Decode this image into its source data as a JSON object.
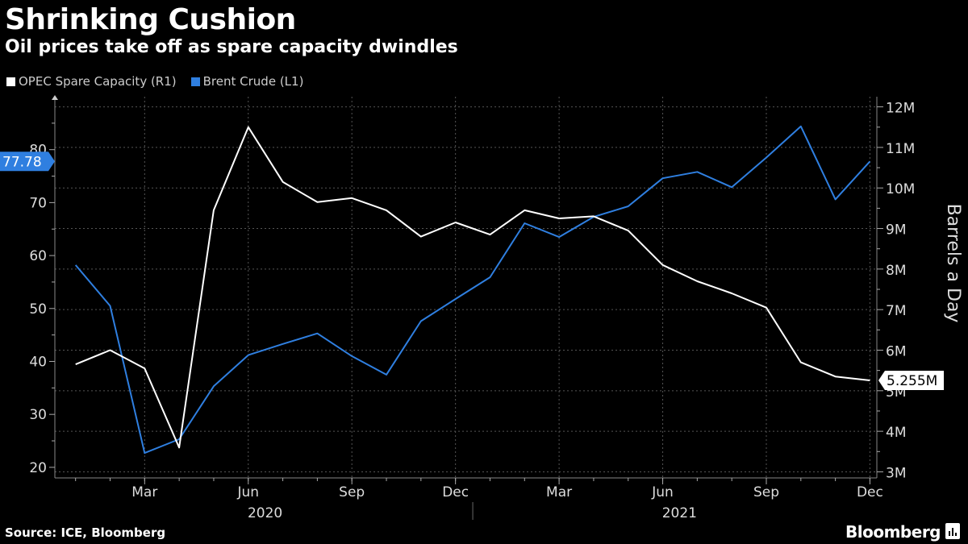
{
  "title": "Shrinking Cushion",
  "subtitle": "Oil prices take off as spare capacity dwindles",
  "legend": [
    {
      "label": "OPEC Spare Capacity (R1)",
      "color": "#ffffff"
    },
    {
      "label": "Brent Crude (L1)",
      "color": "#2f7fe0"
    }
  ],
  "source": "Source: ICE, Bloomberg",
  "brand": "Bloomberg",
  "chart_data": {
    "type": "line",
    "x": [
      "2020-01",
      "2020-02",
      "2020-03",
      "2020-04",
      "2020-05",
      "2020-06",
      "2020-07",
      "2020-08",
      "2020-09",
      "2020-10",
      "2020-11",
      "2020-12",
      "2021-01",
      "2021-02",
      "2021-03",
      "2021-04",
      "2021-05",
      "2021-06",
      "2021-07",
      "2021-08",
      "2021-09",
      "2021-10",
      "2021-11",
      "2021-12"
    ],
    "x_ticks": [
      {
        "date": "2020-03",
        "label": "Mar"
      },
      {
        "date": "2020-06",
        "label": "Jun"
      },
      {
        "date": "2020-09",
        "label": "Sep"
      },
      {
        "date": "2020-12",
        "label": "Dec"
      },
      {
        "date": "2021-03",
        "label": "Mar"
      },
      {
        "date": "2021-06",
        "label": "Jun"
      },
      {
        "date": "2021-09",
        "label": "Sep"
      },
      {
        "date": "2021-12",
        "label": "Dec"
      }
    ],
    "year_labels": [
      {
        "label": "2020",
        "date": "2020-07"
      },
      {
        "label": "2021",
        "date": "2021-07"
      }
    ],
    "series": [
      {
        "name": "Brent Crude (L1)",
        "axis": "left",
        "color": "#2f7fe0",
        "values": [
          58.2,
          50.5,
          22.7,
          25.3,
          35.3,
          41.2,
          43.3,
          45.3,
          41.0,
          37.5,
          47.6,
          51.8,
          55.9,
          66.1,
          63.5,
          67.3,
          69.3,
          74.6,
          75.8,
          72.9,
          78.5,
          84.4,
          70.6,
          77.78
        ]
      },
      {
        "name": "OPEC Spare Capacity (R1)",
        "axis": "right",
        "color": "#ffffff",
        "values": [
          5.65,
          6.0,
          5.55,
          3.6,
          9.45,
          11.5,
          10.15,
          9.65,
          9.75,
          9.45,
          8.8,
          9.15,
          8.85,
          9.45,
          9.25,
          9.3,
          8.95,
          8.1,
          7.7,
          7.4,
          7.05,
          5.7,
          5.35,
          5.255
        ]
      }
    ],
    "left_axis": {
      "ylim": [
        18,
        90
      ],
      "ticks": [
        20,
        30,
        40,
        50,
        60,
        70,
        80
      ]
    },
    "right_axis": {
      "ylim": [
        2.85,
        12.25
      ],
      "ticks": [
        3,
        4,
        5,
        6,
        7,
        8,
        9,
        10,
        11,
        12
      ],
      "tick_labels": [
        "3M",
        "4M",
        "5M",
        "6M",
        "7M",
        "8M",
        "9M",
        "10M",
        "11M",
        "12M"
      ],
      "label": "Barrels a Day"
    },
    "last_labels": {
      "left": "77.78",
      "right": "5.255M"
    },
    "grid": true
  }
}
